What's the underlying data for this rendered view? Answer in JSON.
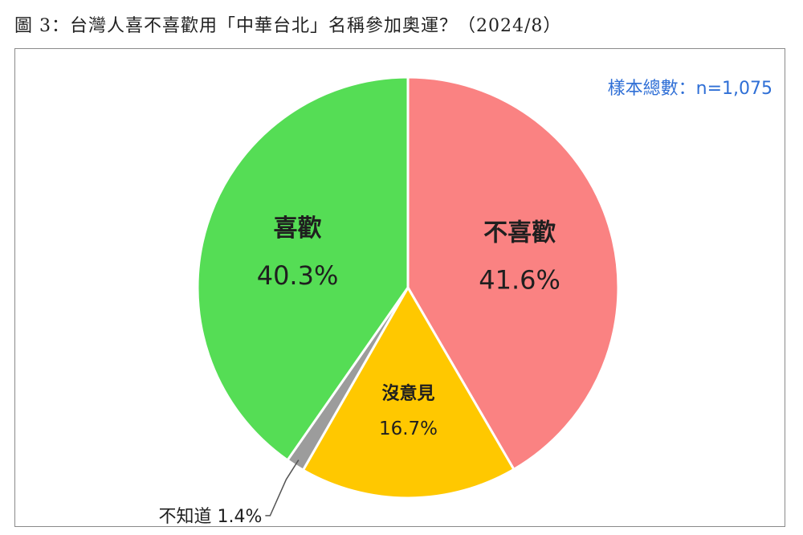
{
  "title": "圖 3：台灣人喜不喜歡用「中華台北」名稱參加奧運？（2024/8）",
  "sample_note": "樣本總數：n=1,075",
  "colors": {
    "dislike": "#fa8282",
    "neutral": "#ffc800",
    "unknown": "#9c9c9c",
    "like": "#55dd55",
    "sample_note": "#2f6fd6",
    "leader": "#555555"
  },
  "chart_data": {
    "type": "pie",
    "title": "圖 3：台灣人喜不喜歡用「中華台北」名稱參加奧運？（2024/8）",
    "annotation": "樣本總數：n=1,075",
    "slices": [
      {
        "label": "不喜歡",
        "value": 41.6,
        "pct_text": "41.6%",
        "color": "#fa8282"
      },
      {
        "label": "沒意見",
        "value": 16.7,
        "pct_text": "16.7%",
        "color": "#ffc800"
      },
      {
        "label": "不知道",
        "value": 1.4,
        "pct_text": "1.4%",
        "color": "#9c9c9c"
      },
      {
        "label": "喜歡",
        "value": 40.3,
        "pct_text": "40.3%",
        "color": "#55dd55"
      }
    ]
  }
}
